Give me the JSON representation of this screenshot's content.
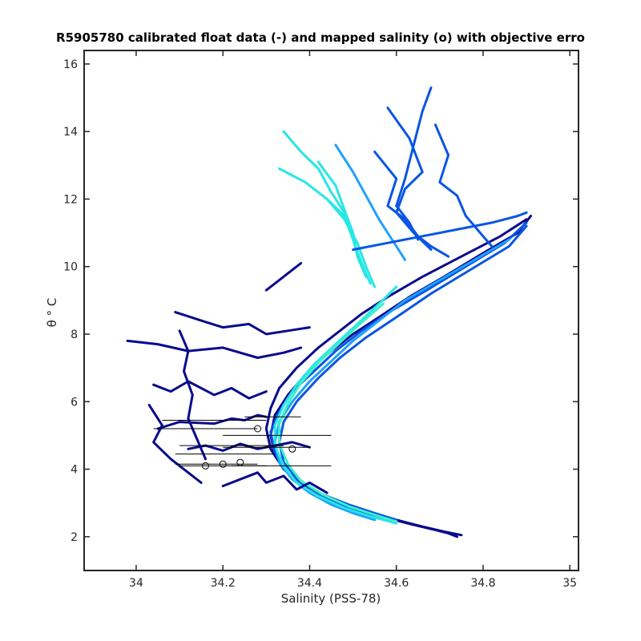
{
  "chart_data": {
    "type": "line",
    "title": "R5905780 calibrated float data (-) and mapped salinity (o) with objective erro",
    "xlabel": "Salinity (PSS-78)",
    "ylabel": "θ ° C",
    "xlim": [
      33.88,
      35.02
    ],
    "ylim": [
      1.0,
      16.4
    ],
    "xticks": [
      "34",
      "34.2",
      "34.4",
      "34.6",
      "34.8",
      "35"
    ],
    "xtick_values": [
      34.0,
      34.2,
      34.4,
      34.6,
      34.8,
      35.0
    ],
    "yticks": [
      "2",
      "4",
      "6",
      "8",
      "10",
      "12",
      "14",
      "16"
    ],
    "ytick_values": [
      2,
      4,
      6,
      8,
      10,
      12,
      14,
      16
    ],
    "grid": false,
    "colors": {
      "dark": "#0a0a8c",
      "mid": "#0a55e6",
      "light": "#1ea0ff",
      "cyan": "#28e6e6",
      "aqua": "#3cf0c8",
      "axis": "#262626"
    },
    "series": [
      {
        "color_key": "dark",
        "x": [
          34.74,
          34.72,
          34.69,
          34.64,
          34.58,
          34.52,
          34.45,
          34.39,
          34.34,
          34.31,
          34.3,
          34.31,
          34.33,
          34.37,
          34.42,
          34.47,
          34.52,
          34.58,
          34.66,
          34.75,
          34.84,
          34.9
        ],
        "y": [
          2.0,
          2.1,
          2.2,
          2.35,
          2.55,
          2.8,
          3.1,
          3.5,
          4.0,
          4.6,
          5.2,
          5.8,
          6.4,
          7.0,
          7.6,
          8.1,
          8.6,
          9.1,
          9.7,
          10.3,
          10.9,
          11.4
        ]
      },
      {
        "color_key": "dark",
        "x": [
          34.75,
          34.71,
          34.66,
          34.6,
          34.53,
          34.46,
          34.4,
          34.35,
          34.32,
          34.31,
          34.32,
          34.35,
          34.39,
          34.44,
          34.5,
          34.56,
          34.63,
          34.71,
          34.8,
          34.88,
          34.91
        ],
        "y": [
          2.05,
          2.15,
          2.3,
          2.5,
          2.75,
          3.05,
          3.45,
          3.9,
          4.4,
          5.0,
          5.6,
          6.2,
          6.8,
          7.4,
          8.0,
          8.5,
          9.1,
          9.7,
          10.4,
          11.0,
          11.5
        ]
      },
      {
        "color_key": "mid",
        "x": [
          34.6,
          34.55,
          34.49,
          34.43,
          34.38,
          34.34,
          34.32,
          34.31,
          34.33,
          34.36,
          34.41,
          34.46,
          34.52,
          34.59,
          34.67,
          34.76,
          34.85,
          34.9
        ],
        "y": [
          2.5,
          2.7,
          2.95,
          3.25,
          3.6,
          4.0,
          4.5,
          5.1,
          5.7,
          6.3,
          6.9,
          7.5,
          8.1,
          8.7,
          9.3,
          10.0,
          10.7,
          11.3
        ]
      },
      {
        "color_key": "mid",
        "x": [
          34.57,
          34.52,
          34.46,
          34.41,
          34.37,
          34.34,
          34.33,
          34.34,
          34.37,
          34.42,
          34.47,
          34.53,
          34.6,
          34.68,
          34.77,
          34.86,
          34.9
        ],
        "y": [
          2.55,
          2.75,
          3.0,
          3.35,
          3.75,
          4.2,
          4.8,
          5.4,
          6.0,
          6.7,
          7.3,
          7.9,
          8.5,
          9.2,
          9.9,
          10.6,
          11.2
        ]
      },
      {
        "color_key": "light",
        "x": [
          34.55,
          34.5,
          34.45,
          34.4,
          34.36,
          34.33,
          34.32,
          34.33,
          34.36,
          34.4,
          34.45,
          34.5,
          34.56,
          34.62,
          34.7,
          34.78,
          34.86
        ],
        "y": [
          2.5,
          2.7,
          2.95,
          3.3,
          3.7,
          4.2,
          4.8,
          5.4,
          6.0,
          6.6,
          7.2,
          7.8,
          8.4,
          9.0,
          9.6,
          10.2,
          10.8
        ]
      },
      {
        "color_key": "cyan",
        "x": [
          34.6,
          34.54,
          34.48,
          34.42,
          34.37,
          34.34,
          34.32,
          34.32,
          34.34,
          34.37,
          34.41,
          34.46,
          34.51,
          34.56,
          34.6
        ],
        "y": [
          2.4,
          2.6,
          2.85,
          3.2,
          3.6,
          4.1,
          4.7,
          5.3,
          5.9,
          6.5,
          7.1,
          7.7,
          8.3,
          8.9,
          9.4
        ]
      },
      {
        "color_key": "aqua",
        "x": [
          34.6,
          34.55,
          34.49,
          34.43,
          34.38,
          34.35,
          34.33,
          34.33,
          34.35,
          34.38,
          34.42,
          34.47,
          34.52,
          34.57
        ],
        "y": [
          2.45,
          2.65,
          2.9,
          3.25,
          3.65,
          4.15,
          4.75,
          5.35,
          5.95,
          6.55,
          7.15,
          7.75,
          8.35,
          8.9
        ]
      },
      {
        "color_key": "dark",
        "x": [
          34.05,
          34.1,
          34.18,
          34.22,
          34.25,
          34.28,
          34.3
        ],
        "y": [
          5.2,
          5.4,
          5.35,
          5.5,
          5.45,
          5.6,
          5.55
        ]
      },
      {
        "color_key": "dark",
        "x": [
          34.12,
          34.16,
          34.2,
          34.24,
          34.28,
          34.32,
          34.36,
          34.4
        ],
        "y": [
          4.6,
          4.7,
          4.55,
          4.75,
          4.6,
          4.7,
          4.8,
          4.65
        ]
      },
      {
        "color_key": "dark",
        "x": [
          34.04,
          34.08,
          34.12,
          34.18,
          34.22,
          34.26,
          34.3
        ],
        "y": [
          6.5,
          6.3,
          6.6,
          6.2,
          6.4,
          6.1,
          6.3
        ]
      },
      {
        "color_key": "dark",
        "x": [
          33.98,
          34.05,
          34.12,
          34.2,
          34.28,
          34.34,
          34.38
        ],
        "y": [
          7.8,
          7.7,
          7.5,
          7.6,
          7.3,
          7.45,
          7.6
        ]
      },
      {
        "color_key": "dark",
        "x": [
          34.1,
          34.12,
          34.11,
          34.13,
          34.12,
          34.14,
          34.16
        ],
        "y": [
          8.1,
          7.5,
          6.9,
          6.2,
          5.5,
          4.9,
          4.3
        ]
      },
      {
        "color_key": "dark",
        "x": [
          34.09,
          34.15,
          34.2,
          34.26,
          34.3,
          34.35,
          34.4
        ],
        "y": [
          8.65,
          8.4,
          8.2,
          8.3,
          8.0,
          8.1,
          8.2
        ]
      },
      {
        "color_key": "dark",
        "x": [
          34.03,
          34.06,
          34.04,
          34.08,
          34.12,
          34.15
        ],
        "y": [
          5.9,
          5.3,
          4.8,
          4.3,
          3.9,
          3.6
        ]
      },
      {
        "color_key": "dark",
        "x": [
          34.2,
          34.24,
          34.28,
          34.3,
          34.34,
          34.37,
          34.4,
          34.44
        ],
        "y": [
          3.5,
          3.7,
          3.9,
          3.6,
          3.8,
          3.4,
          3.6,
          3.3
        ]
      },
      {
        "color_key": "dark",
        "x": [
          34.3,
          34.33,
          34.35,
          34.37,
          34.38
        ],
        "y": [
          9.3,
          9.6,
          9.8,
          10.0,
          10.1
        ]
      },
      {
        "color_key": "mid",
        "x": [
          34.68,
          34.66,
          34.64,
          34.62,
          34.6,
          34.63,
          34.65
        ],
        "y": [
          15.3,
          14.6,
          13.6,
          12.6,
          11.8,
          11.3,
          10.8
        ]
      },
      {
        "color_key": "mid",
        "x": [
          34.69,
          34.72,
          34.7,
          34.74,
          34.76,
          34.78,
          34.8,
          34.82
        ],
        "y": [
          14.2,
          13.3,
          12.5,
          12.1,
          11.5,
          11.2,
          10.9,
          10.6
        ]
      },
      {
        "color_key": "mid",
        "x": [
          34.58,
          34.63,
          34.66,
          34.62,
          34.6,
          34.64,
          34.68
        ],
        "y": [
          14.7,
          13.8,
          12.8,
          12.3,
          11.6,
          11.0,
          10.5
        ]
      },
      {
        "color_key": "mid",
        "x": [
          34.55,
          34.6,
          34.58,
          34.62,
          34.65,
          34.68,
          34.72
        ],
        "y": [
          13.4,
          12.6,
          11.8,
          11.4,
          10.9,
          10.6,
          10.3
        ]
      },
      {
        "color_key": "light",
        "x": [
          34.46,
          34.5,
          34.53,
          34.56,
          34.59,
          34.62
        ],
        "y": [
          13.6,
          12.8,
          12.1,
          11.4,
          10.8,
          10.2
        ]
      },
      {
        "color_key": "cyan",
        "x": [
          34.34,
          34.38,
          34.42,
          34.45,
          34.48,
          34.5,
          34.52
        ],
        "y": [
          14.0,
          13.4,
          12.9,
          12.2,
          11.6,
          10.8,
          10.0
        ]
      },
      {
        "color_key": "cyan",
        "x": [
          34.33,
          34.39,
          34.44,
          34.48,
          34.5,
          34.52,
          34.54
        ],
        "y": [
          12.9,
          12.5,
          12.0,
          11.5,
          10.8,
          10.1,
          9.5
        ]
      },
      {
        "color_key": "cyan",
        "x": [
          34.42,
          34.46,
          34.48,
          34.5,
          34.51,
          34.53
        ],
        "y": [
          13.1,
          12.4,
          11.7,
          11.0,
          10.3,
          9.7
        ]
      },
      {
        "color_key": "cyan",
        "x": [
          34.44,
          34.48,
          34.51,
          34.53,
          34.55
        ],
        "y": [
          12.0,
          11.4,
          10.7,
          10.0,
          9.4
        ]
      },
      {
        "color_key": "mid",
        "x": [
          34.5,
          34.58,
          34.66,
          34.74,
          34.82,
          34.88,
          34.9
        ],
        "y": [
          10.5,
          10.7,
          10.9,
          11.1,
          11.3,
          11.5,
          11.6
        ]
      }
    ],
    "mapped_points": {
      "x": [
        34.16,
        34.2,
        34.24,
        34.28,
        34.36
      ],
      "y": [
        4.1,
        4.15,
        4.2,
        5.2,
        4.6
      ]
    },
    "error_bars": [
      {
        "x_low": 34.06,
        "x_high": 34.3,
        "y": 5.45
      },
      {
        "x_low": 34.04,
        "x_high": 34.28,
        "y": 5.2
      },
      {
        "x_low": 34.1,
        "x_high": 34.34,
        "y": 4.7
      },
      {
        "x_low": 34.09,
        "x_high": 34.32,
        "y": 4.45
      },
      {
        "x_low": 34.1,
        "x_high": 34.3,
        "y": 4.1
      },
      {
        "x_low": 34.09,
        "x_high": 34.28,
        "y": 4.15
      },
      {
        "x_low": 34.2,
        "x_high": 34.45,
        "y": 5.0
      },
      {
        "x_low": 34.22,
        "x_high": 34.45,
        "y": 4.1
      },
      {
        "x_low": 34.25,
        "x_high": 34.38,
        "y": 5.55
      },
      {
        "x_low": 34.2,
        "x_high": 34.4,
        "y": 4.65
      }
    ]
  }
}
